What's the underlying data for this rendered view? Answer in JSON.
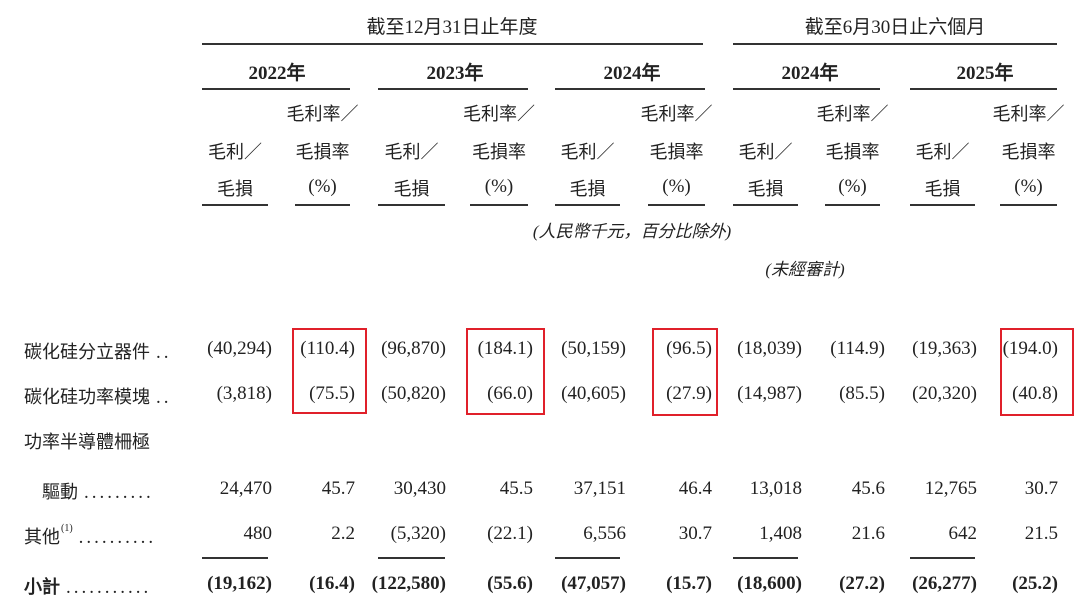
{
  "header": {
    "group_annual": "截至12月31日止年度",
    "group_interim": "截至6月30日止六個月",
    "years": [
      "2022年",
      "2023年",
      "2024年",
      "2024年",
      "2025年"
    ],
    "sub_profit": [
      "毛利／",
      "毛損"
    ],
    "sub_margin": [
      "毛利率／",
      "毛損率",
      "(%)"
    ],
    "unit_note": "(人民幣千元，百分比除外)",
    "unaudited_note": "(未經審計)"
  },
  "rows": [
    {
      "label": "碳化硅分立器件",
      "dots": "..",
      "values": [
        "(40,294)",
        "(110.4)",
        "(96,870)",
        "(184.1)",
        "(50,159)",
        "(96.5)",
        "(18,039)",
        "(114.9)",
        "(19,363)",
        "(194.0)"
      ]
    },
    {
      "label": "碳化硅功率模塊",
      "dots": "..",
      "values": [
        "(3,818)",
        "(75.5)",
        "(50,820)",
        "(66.0)",
        "(40,605)",
        "(27.9)",
        "(14,987)",
        "(85.5)",
        "(20,320)",
        "(40.8)"
      ]
    },
    {
      "label": "功率半導體柵極",
      "dots": "",
      "values": []
    },
    {
      "label": "驅動",
      "dots": ".........",
      "values": [
        "24,470",
        "45.7",
        "30,430",
        "45.5",
        "37,151",
        "46.4",
        "13,018",
        "45.6",
        "12,765",
        "30.7"
      ]
    },
    {
      "label": "其他",
      "sup": "(1)",
      "dots": "..........",
      "values": [
        "480",
        "2.2",
        "(5,320)",
        "(22.1)",
        "6,556",
        "30.7",
        "1,408",
        "21.6",
        "642",
        "21.5"
      ]
    },
    {
      "label": "小計",
      "dots": "...........",
      "total": true,
      "values": [
        "(19,162)",
        "(16.4)",
        "(122,580)",
        "(55.6)",
        "(47,057)",
        "(15.7)",
        "(18,600)",
        "(27.2)",
        "(26,277)",
        "(25.2)"
      ]
    }
  ],
  "highlight_color": "#e0202a"
}
